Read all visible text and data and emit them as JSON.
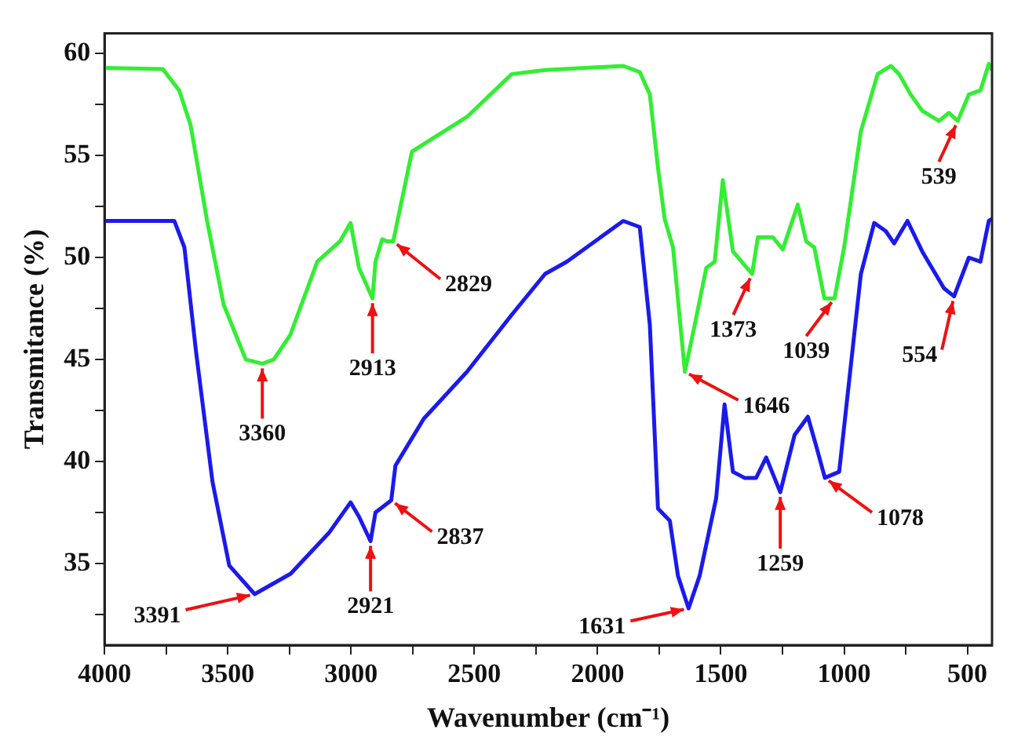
{
  "chart_data": {
    "type": "line",
    "xlabel": "Wavenumber (cm⁻¹)",
    "ylabel": "Transmitance (%)",
    "xlim": [
      4000,
      400
    ],
    "ylim": [
      31,
      61
    ],
    "xticks": [
      4000,
      {
        "value": 3750,
        "label": null
      },
      3500,
      {
        "value": 3250,
        "label": null
      },
      3000,
      {
        "value": 2750,
        "label": null
      },
      2500,
      {
        "value": 2250,
        "label": null
      },
      2000,
      {
        "value": 1750,
        "label": null
      },
      1500,
      {
        "value": 1250,
        "label": null
      },
      1000,
      {
        "value": 750,
        "label": null
      },
      500
    ],
    "yticks": [
      {
        "value": 32.5,
        "label": null
      },
      35,
      {
        "value": 37.5,
        "label": null
      },
      40,
      {
        "value": 42.5,
        "label": null
      },
      45,
      {
        "value": 47.5,
        "label": null
      },
      50,
      {
        "value": 52.5,
        "label": null
      },
      55,
      {
        "value": 57.5,
        "label": null
      },
      60
    ],
    "grid": false,
    "series": [
      {
        "color": "#33ee33",
        "x": [
          4000,
          3764,
          3697,
          3651,
          3584,
          3517,
          3427,
          3360,
          3314,
          3247,
          3137,
          3045,
          3002,
          2968,
          2913,
          2901,
          2874,
          2854,
          2829,
          2753,
          2530,
          2348,
          2213,
          1896,
          1829,
          1788,
          1755,
          1728,
          1694,
          1646,
          1606,
          1559,
          1525,
          1492,
          1451,
          1373,
          1350,
          1289,
          1249,
          1188,
          1154,
          1121,
          1080,
          1039,
          1000,
          932,
          864,
          810,
          777,
          730,
          683,
          615,
          575,
          539,
          494,
          447,
          413,
          400
        ],
        "values": [
          59.3,
          59.25,
          58.2,
          56.5,
          51.8,
          47.7,
          45.0,
          44.8,
          45.0,
          46.2,
          49.8,
          50.8,
          51.7,
          49.5,
          48,
          49.8,
          50.9,
          50.8,
          50.8,
          55.2,
          56.9,
          59,
          59.2,
          59.4,
          59.1,
          58,
          54.4,
          51.9,
          50.5,
          44.4,
          46.7,
          49.5,
          49.8,
          53.8,
          50.3,
          49.2,
          51,
          51,
          50.4,
          52.6,
          50.8,
          50.5,
          48,
          48,
          50.5,
          56.2,
          59,
          59.4,
          59,
          58,
          57.2,
          56.7,
          57.1,
          56.7,
          58,
          58.2,
          59.5,
          59.2
        ]
      },
      {
        "color": "#1a1aee",
        "x": [
          4000,
          3717,
          3676,
          3629,
          3562,
          3494,
          3391,
          3245,
          3090,
          3002,
          2968,
          2921,
          2901,
          2837,
          2820,
          2705,
          2530,
          2348,
          2213,
          2125,
          1896,
          1829,
          1788,
          1755,
          1707,
          1674,
          1631,
          1586,
          1519,
          1485,
          1451,
          1404,
          1357,
          1316,
          1259,
          1201,
          1147,
          1114,
          1078,
          1020,
          932,
          878,
          831,
          797,
          743,
          683,
          595,
          554,
          494,
          447,
          413,
          400
        ],
        "values": [
          51.8,
          51.8,
          50.5,
          45.4,
          39,
          34.9,
          33.5,
          34.5,
          36.5,
          38,
          37.3,
          36.1,
          37.5,
          38.1,
          39.8,
          42.1,
          44.4,
          47.2,
          49.2,
          49.8,
          51.8,
          51.5,
          46.7,
          37.7,
          37.1,
          34.4,
          32.8,
          34.4,
          38.2,
          42.8,
          39.5,
          39.2,
          39.2,
          40.2,
          38.5,
          41.3,
          42.2,
          40.8,
          39.2,
          39.5,
          49.2,
          51.7,
          51.3,
          50.7,
          51.8,
          50.3,
          48.5,
          48.1,
          50,
          49.8,
          51.8,
          51.9
        ]
      }
    ],
    "annotations": [
      {
        "text": "3360",
        "x": 3360,
        "y": 44.8
      },
      {
        "text": "2913",
        "x": 2913,
        "y": 48
      },
      {
        "text": "2829",
        "x": 2829,
        "y": 50.8
      },
      {
        "text": "1373",
        "x": 1373,
        "y": 49.2
      },
      {
        "text": "1039",
        "x": 1039,
        "y": 48
      },
      {
        "text": "539",
        "x": 539,
        "y": 56.7
      },
      {
        "text": "1646",
        "x": 1646,
        "y": 44.4
      },
      {
        "text": "554",
        "x": 554,
        "y": 48.1
      },
      {
        "text": "3391",
        "x": 3391,
        "y": 33.5
      },
      {
        "text": "2921",
        "x": 2921,
        "y": 36.1
      },
      {
        "text": "2837",
        "x": 2837,
        "y": 38.1
      },
      {
        "text": "1631",
        "x": 1631,
        "y": 32.8
      },
      {
        "text": "1259",
        "x": 1259,
        "y": 38.5
      },
      {
        "text": "1078",
        "x": 1078,
        "y": 39.2
      }
    ]
  }
}
